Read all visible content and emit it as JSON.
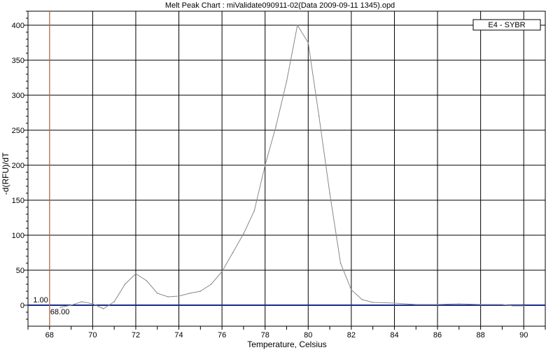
{
  "chart_data": {
    "type": "line",
    "title": "Melt Peak Chart : miValidate090911-02(Data 2009-09-11 1345).opd",
    "xlabel": "Temperature, Celsius",
    "ylabel": "-d(RFU)/dT",
    "xlim": [
      67,
      91
    ],
    "ylim": [
      -30,
      420
    ],
    "x_ticks": [
      68,
      70,
      72,
      74,
      76,
      78,
      80,
      82,
      84,
      86,
      88,
      90
    ],
    "y_ticks": [
      0,
      50,
      100,
      150,
      200,
      250,
      300,
      350,
      400
    ],
    "grid": true,
    "legend": {
      "position": "top-right",
      "entries": [
        "E4 - SYBR"
      ]
    },
    "series": [
      {
        "name": "E4 - SYBR",
        "color": "#888888",
        "x": [
          68.5,
          69.0,
          69.5,
          70.0,
          70.5,
          71.0,
          71.5,
          72.0,
          72.5,
          73.0,
          73.5,
          74.0,
          74.5,
          75.0,
          75.5,
          76.0,
          76.5,
          77.0,
          77.5,
          78.0,
          78.5,
          79.0,
          79.5,
          80.0,
          80.5,
          81.0,
          81.5,
          82.0,
          82.5,
          83.0,
          84.0,
          85.0,
          86.0,
          87.0,
          88.0,
          89.0,
          89.5,
          90.0
        ],
        "y": [
          -3,
          0,
          5,
          2,
          -5,
          5,
          30,
          45,
          35,
          17,
          12,
          13,
          17,
          20,
          30,
          48,
          75,
          102,
          135,
          200,
          255,
          320,
          400,
          375,
          270,
          160,
          60,
          22,
          8,
          4,
          3,
          1,
          1,
          2,
          1,
          1,
          -1,
          -1
        ]
      }
    ],
    "threshold": {
      "value": 0,
      "color": "#1a2a8a"
    },
    "marker": {
      "x": 68,
      "color": "#d08050",
      "labels": [
        "1.00",
        "68.00"
      ]
    }
  }
}
